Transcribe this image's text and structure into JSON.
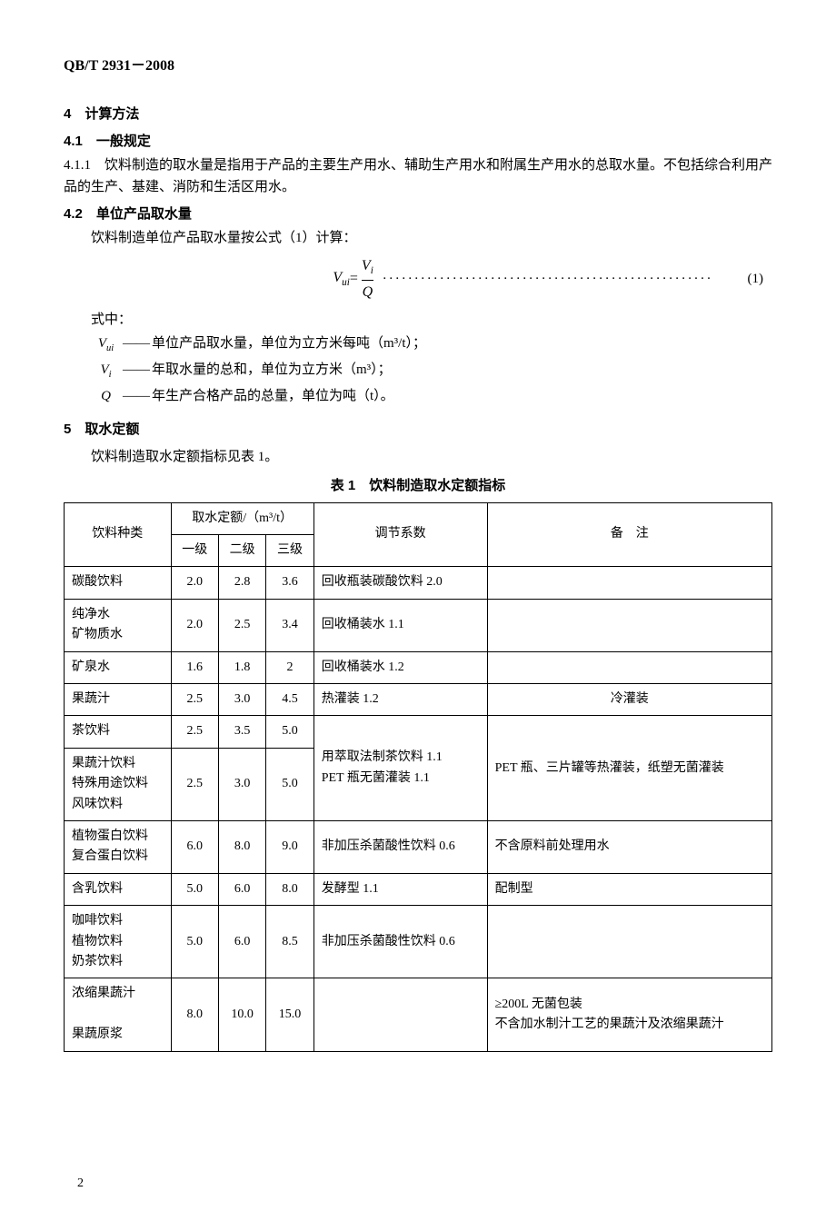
{
  "doc_id": "QB/T 2931－2008",
  "sec4": {
    "num": "4",
    "title": "计算方法",
    "s41_num": "4.1",
    "s41_title": "一般规定",
    "s411": "4.1.1　饮料制造的取水量是指用于产品的主要生产用水、辅助生产用水和附属生产用水的总取水量。不包括综合利用产品的生产、基建、消防和生活区用水。",
    "s42_num": "4.2",
    "s42_title": "单位产品取水量",
    "s42_text": "饮料制造单位产品取水量按公式（1）计算：",
    "formula_lhs": "V",
    "formula_lhs_sub": "ui",
    "formula_eq": " = ",
    "frac_num": "V",
    "frac_num_sub": "i",
    "frac_den": "Q",
    "eqnum": "(1)",
    "where_label": "式中：",
    "where": [
      {
        "sym": "V",
        "sub": "ui",
        "text": "单位产品取水量，单位为立方米每吨（m³/t）；"
      },
      {
        "sym": "V",
        "sub": "i",
        "text": "年取水量的总和，单位为立方米（m³）；"
      },
      {
        "sym": "Q",
        "sub": "",
        "text": "年生产合格产品的总量，单位为吨（t）。"
      }
    ]
  },
  "sec5": {
    "num": "5",
    "title": "取水定额",
    "text": "饮料制造取水定额指标见表 1。",
    "table_caption": "表 1　饮料制造取水定额指标",
    "head": {
      "c1": "饮料种类",
      "c2": "取水定额/（m³/t）",
      "c2a": "一级",
      "c2b": "二级",
      "c2c": "三级",
      "c3": "调节系数",
      "c4": "备　注"
    },
    "rows": {
      "r1": {
        "name": "碳酸饮料",
        "g1": "2.0",
        "g2": "2.8",
        "g3": "3.6",
        "adj": "回收瓶装碳酸饮料 2.0",
        "note": ""
      },
      "r2": {
        "name1": "纯净水",
        "name2": "矿物质水",
        "g1": "2.0",
        "g2": "2.5",
        "g3": "3.4",
        "adj": "回收桶装水 1.1",
        "note": ""
      },
      "r3": {
        "name": "矿泉水",
        "g1": "1.6",
        "g2": "1.8",
        "g3": "2",
        "adj": "回收桶装水 1.2",
        "note": ""
      },
      "r4": {
        "name": "果蔬汁",
        "g1": "2.5",
        "g2": "3.0",
        "g3": "4.5",
        "adj": "热灌装 1.2",
        "note": "冷灌装"
      },
      "r5": {
        "name": "茶饮料",
        "g1": "2.5",
        "g2": "3.5",
        "g3": "5.0"
      },
      "r6": {
        "name1": "果蔬汁饮料",
        "name2": "特殊用途饮料",
        "name3": "风味饮料",
        "g1": "2.5",
        "g2": "3.0",
        "g3": "5.0",
        "adj": "用萃取法制茶饮料 1.1\nPET 瓶无菌灌装 1.1",
        "note": "PET 瓶、三片罐等热灌装，纸塑无菌灌装"
      },
      "r7": {
        "name1": "植物蛋白饮料",
        "name2": "复合蛋白饮料",
        "g1": "6.0",
        "g2": "8.0",
        "g3": "9.0",
        "adj": "非加压杀菌酸性饮料 0.6",
        "note": "不含原料前处理用水"
      },
      "r8": {
        "name": "含乳饮料",
        "g1": "5.0",
        "g2": "6.0",
        "g3": "8.0",
        "adj": "发酵型 1.1",
        "note": "配制型"
      },
      "r9": {
        "name1": "咖啡饮料",
        "name2": "植物饮料",
        "name3": "奶茶饮料",
        "g1": "5.0",
        "g2": "6.0",
        "g3": "8.5",
        "adj": "非加压杀菌酸性饮料 0.6",
        "note": ""
      },
      "r10": {
        "name1": "浓缩果蔬汁",
        "name2": "果蔬原浆",
        "g1": "8.0",
        "g2": "10.0",
        "g3": "15.0",
        "adj": "",
        "note": "≥200L 无菌包装\n不含加水制汁工艺的果蔬汁及浓缩果蔬汁"
      }
    }
  },
  "page_num": "2"
}
